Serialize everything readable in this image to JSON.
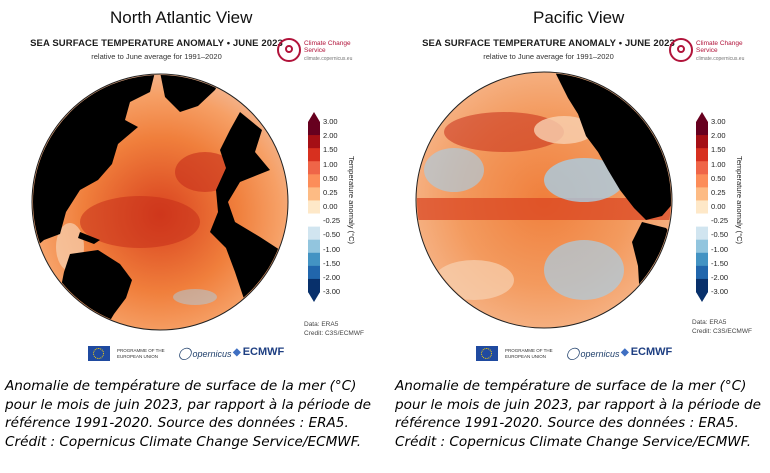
{
  "panels": [
    {
      "view_title": "North Atlantic View",
      "map_title": "SEA SURFACE TEMPERATURE ANOMALY • JUNE 2023",
      "map_subtitle": "relative to June average for 1991–2020",
      "caption": "Anomalie de température de surface de la mer (°C) pour le mois de juin 2023, par rapport à la période de référence 1991-2020. Source des données : ERA5. Crédit : Copernicus Climate Change Service/ECMWF."
    },
    {
      "view_title": "Pacific View",
      "map_title": "SEA SURFACE TEMPERATURE ANOMALY • JUNE 2023",
      "map_subtitle": "relative to June average for 1991–2020",
      "caption": "Anomalie de température de surface de la mer (°C) pour le mois de juin 2023, par rapport à la période de référence 1991-2020. Source des données : ERA5. Crédit : Copernicus Climate Change Service/ECMWF."
    }
  ],
  "legend": {
    "label": "Temperature anomaly (°C)",
    "ticks": [
      "3.00",
      "2.00",
      "1.50",
      "1.00",
      "0.50",
      "0.25",
      "0.00",
      "-0.25",
      "-0.50",
      "-1.00",
      "-1.50",
      "-2.00",
      "-3.00"
    ],
    "colors": [
      "#67001f",
      "#a50f15",
      "#d7301f",
      "#ef6548",
      "#fc8d59",
      "#fdbb84",
      "#fee8c8",
      "#ffffff",
      "#d1e5f0",
      "#92c5de",
      "#4393c3",
      "#2166ac",
      "#08306b"
    ]
  },
  "data_note": {
    "data": "Data: ERA5",
    "credit": "Credit: C3S/ECMWF"
  },
  "logos": {
    "c3s_name": "Climate Change Service",
    "c3s_url": "climate.copernicus.eu",
    "eu_text": "PROGRAMME OF THE EUROPEAN UNION",
    "copernicus": "opernicus",
    "ecmwf": "ECMWF"
  },
  "colors": {
    "land": "#000000",
    "ocean_warm": "#f07f3c",
    "ocean_hot": "#c62d1a",
    "ocean_cool": "#a9cde4",
    "brand": "#b1133a"
  }
}
